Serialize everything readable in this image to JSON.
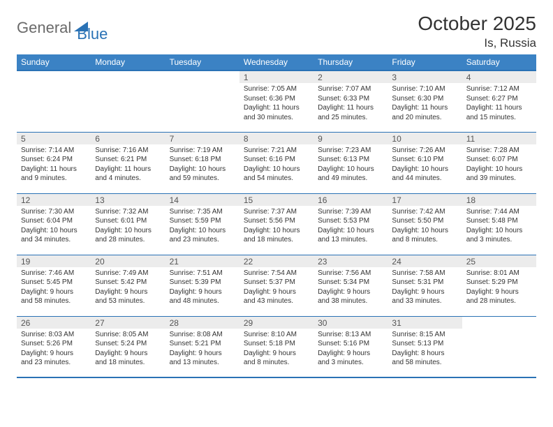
{
  "logo": {
    "general": "General",
    "blue": "Blue"
  },
  "title": "October 2025",
  "location": "Is, Russia",
  "colors": {
    "header_bg": "#3b82c4",
    "header_border": "#2a72b5",
    "daynum_bg": "#ececec",
    "text": "#333333",
    "logo_gray": "#6a6a6a",
    "logo_blue": "#2a72b5"
  },
  "day_labels": [
    "Sunday",
    "Monday",
    "Tuesday",
    "Wednesday",
    "Thursday",
    "Friday",
    "Saturday"
  ],
  "weeks": [
    [
      null,
      null,
      null,
      {
        "n": "1",
        "sr": "7:05 AM",
        "ss": "6:36 PM",
        "dl": "11 hours and 30 minutes."
      },
      {
        "n": "2",
        "sr": "7:07 AM",
        "ss": "6:33 PM",
        "dl": "11 hours and 25 minutes."
      },
      {
        "n": "3",
        "sr": "7:10 AM",
        "ss": "6:30 PM",
        "dl": "11 hours and 20 minutes."
      },
      {
        "n": "4",
        "sr": "7:12 AM",
        "ss": "6:27 PM",
        "dl": "11 hours and 15 minutes."
      }
    ],
    [
      {
        "n": "5",
        "sr": "7:14 AM",
        "ss": "6:24 PM",
        "dl": "11 hours and 9 minutes."
      },
      {
        "n": "6",
        "sr": "7:16 AM",
        "ss": "6:21 PM",
        "dl": "11 hours and 4 minutes."
      },
      {
        "n": "7",
        "sr": "7:19 AM",
        "ss": "6:18 PM",
        "dl": "10 hours and 59 minutes."
      },
      {
        "n": "8",
        "sr": "7:21 AM",
        "ss": "6:16 PM",
        "dl": "10 hours and 54 minutes."
      },
      {
        "n": "9",
        "sr": "7:23 AM",
        "ss": "6:13 PM",
        "dl": "10 hours and 49 minutes."
      },
      {
        "n": "10",
        "sr": "7:26 AM",
        "ss": "6:10 PM",
        "dl": "10 hours and 44 minutes."
      },
      {
        "n": "11",
        "sr": "7:28 AM",
        "ss": "6:07 PM",
        "dl": "10 hours and 39 minutes."
      }
    ],
    [
      {
        "n": "12",
        "sr": "7:30 AM",
        "ss": "6:04 PM",
        "dl": "10 hours and 34 minutes."
      },
      {
        "n": "13",
        "sr": "7:32 AM",
        "ss": "6:01 PM",
        "dl": "10 hours and 28 minutes."
      },
      {
        "n": "14",
        "sr": "7:35 AM",
        "ss": "5:59 PM",
        "dl": "10 hours and 23 minutes."
      },
      {
        "n": "15",
        "sr": "7:37 AM",
        "ss": "5:56 PM",
        "dl": "10 hours and 18 minutes."
      },
      {
        "n": "16",
        "sr": "7:39 AM",
        "ss": "5:53 PM",
        "dl": "10 hours and 13 minutes."
      },
      {
        "n": "17",
        "sr": "7:42 AM",
        "ss": "5:50 PM",
        "dl": "10 hours and 8 minutes."
      },
      {
        "n": "18",
        "sr": "7:44 AM",
        "ss": "5:48 PM",
        "dl": "10 hours and 3 minutes."
      }
    ],
    [
      {
        "n": "19",
        "sr": "7:46 AM",
        "ss": "5:45 PM",
        "dl": "9 hours and 58 minutes."
      },
      {
        "n": "20",
        "sr": "7:49 AM",
        "ss": "5:42 PM",
        "dl": "9 hours and 53 minutes."
      },
      {
        "n": "21",
        "sr": "7:51 AM",
        "ss": "5:39 PM",
        "dl": "9 hours and 48 minutes."
      },
      {
        "n": "22",
        "sr": "7:54 AM",
        "ss": "5:37 PM",
        "dl": "9 hours and 43 minutes."
      },
      {
        "n": "23",
        "sr": "7:56 AM",
        "ss": "5:34 PM",
        "dl": "9 hours and 38 minutes."
      },
      {
        "n": "24",
        "sr": "7:58 AM",
        "ss": "5:31 PM",
        "dl": "9 hours and 33 minutes."
      },
      {
        "n": "25",
        "sr": "8:01 AM",
        "ss": "5:29 PM",
        "dl": "9 hours and 28 minutes."
      }
    ],
    [
      {
        "n": "26",
        "sr": "8:03 AM",
        "ss": "5:26 PM",
        "dl": "9 hours and 23 minutes."
      },
      {
        "n": "27",
        "sr": "8:05 AM",
        "ss": "5:24 PM",
        "dl": "9 hours and 18 minutes."
      },
      {
        "n": "28",
        "sr": "8:08 AM",
        "ss": "5:21 PM",
        "dl": "9 hours and 13 minutes."
      },
      {
        "n": "29",
        "sr": "8:10 AM",
        "ss": "5:18 PM",
        "dl": "9 hours and 8 minutes."
      },
      {
        "n": "30",
        "sr": "8:13 AM",
        "ss": "5:16 PM",
        "dl": "9 hours and 3 minutes."
      },
      {
        "n": "31",
        "sr": "8:15 AM",
        "ss": "5:13 PM",
        "dl": "8 hours and 58 minutes."
      },
      null
    ]
  ],
  "labels": {
    "sunrise": "Sunrise: ",
    "sunset": "Sunset: ",
    "daylight": "Daylight: "
  }
}
